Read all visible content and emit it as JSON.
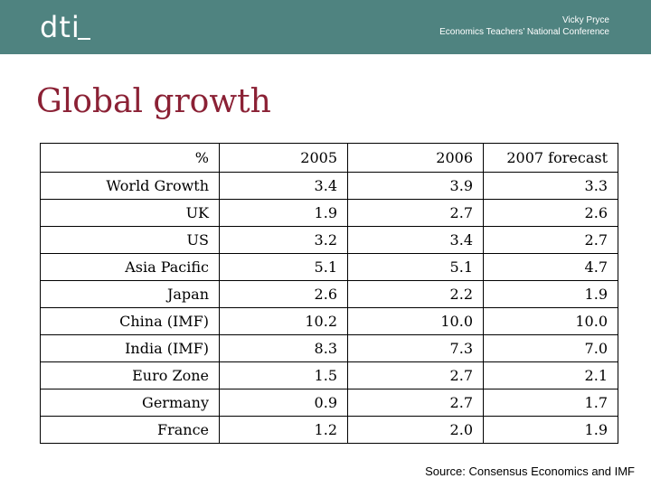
{
  "header": {
    "logo_text": "dti",
    "presenter": "Vicky Pryce",
    "event": "Economics Teachers’ National Conference"
  },
  "title": "Global growth",
  "table": {
    "columns": [
      "%",
      "2005",
      "2006",
      "2007 forecast"
    ],
    "rows": [
      {
        "label": "World Growth",
        "values": [
          "3.4",
          "3.9",
          "3.3"
        ]
      },
      {
        "label": "UK",
        "values": [
          "1.9",
          "2.7",
          "2.6"
        ]
      },
      {
        "label": "US",
        "values": [
          "3.2",
          "3.4",
          "2.7"
        ]
      },
      {
        "label": "Asia Pacific",
        "values": [
          "5.1",
          "5.1",
          "4.7"
        ]
      },
      {
        "label": "Japan",
        "values": [
          "2.6",
          "2.2",
          "1.9"
        ]
      },
      {
        "label": "China (IMF)",
        "values": [
          "10.2",
          "10.0",
          "10.0"
        ]
      },
      {
        "label": "India (IMF)",
        "values": [
          "8.3",
          "7.3",
          "7.0"
        ]
      },
      {
        "label": "Euro Zone",
        "values": [
          "1.5",
          "2.7",
          "2.1"
        ]
      },
      {
        "label": "Germany",
        "values": [
          "0.9",
          "2.7",
          "1.7"
        ]
      },
      {
        "label": "France",
        "values": [
          "1.2",
          "2.0",
          "1.9"
        ]
      }
    ]
  },
  "source": "Source: Consensus Economics and IMF",
  "colors": {
    "banner": "#4f8380",
    "title": "#8b2135",
    "header_text": "#ffffff"
  }
}
